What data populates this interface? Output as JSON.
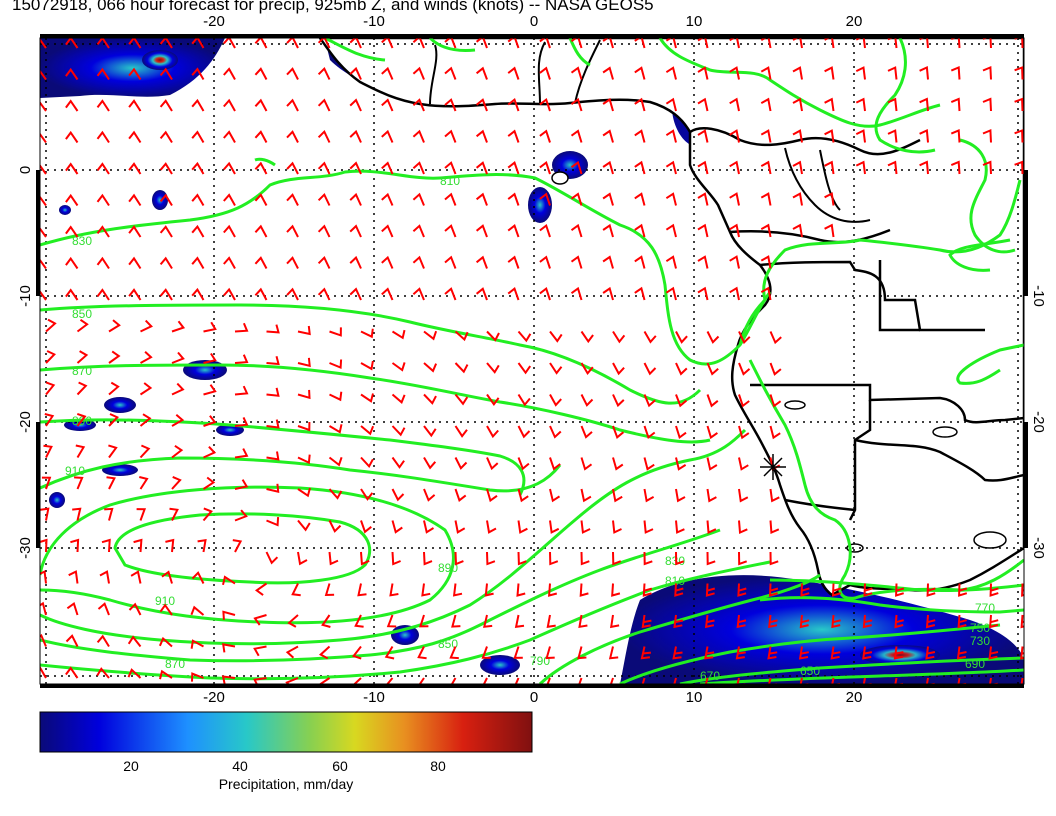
{
  "title": "15072918, 066 hour forecast for precip, 925mb Z, and winds (knots) -- NASA GEOS5",
  "map": {
    "lon_range": [
      -30,
      30
    ],
    "lat_range": [
      -40,
      10
    ],
    "lon_ticks": [
      "-20",
      "-10",
      "0",
      "10",
      "20"
    ],
    "lat_ticks_left": [
      "0",
      "-10",
      "-20",
      "-30"
    ],
    "lat_ticks_right": [
      "-10",
      "-20",
      "-30"
    ],
    "gridlines": "dotted",
    "colors": {
      "coastline": "#000000",
      "contour": "#22ee22",
      "wind_barb": "#ff0000"
    },
    "contour_labels": [
      "810",
      "830",
      "850",
      "870",
      "890",
      "910",
      "770",
      "750",
      "730",
      "690",
      "670",
      "650",
      "790",
      "810",
      "830",
      "850",
      "870",
      "890",
      "910"
    ]
  },
  "colorbar": {
    "label": "Precipitation, mm/day",
    "ticks": [
      "20",
      "40",
      "60",
      "80"
    ],
    "colors": [
      "#0a0a78",
      "#0000dd",
      "#1e90ff",
      "#28c8c8",
      "#88d050",
      "#d8d820",
      "#e89020",
      "#d82010",
      "#801010"
    ]
  }
}
